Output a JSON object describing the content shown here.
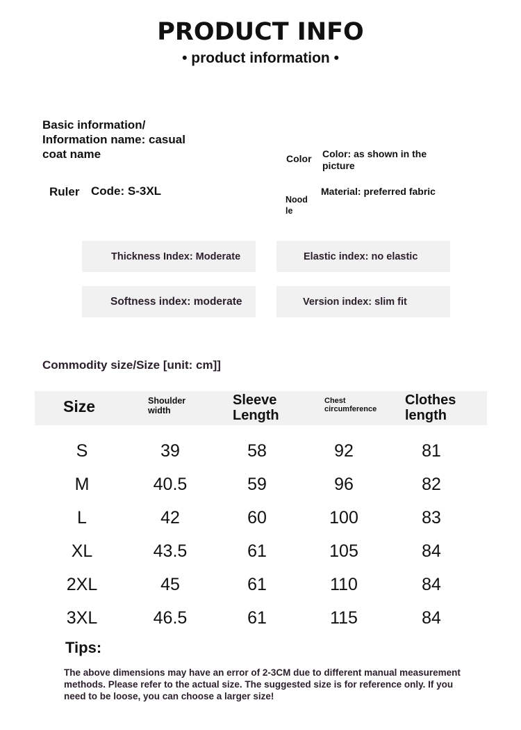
{
  "header": {
    "title": "PRODUCT INFO",
    "subtitle": "• product information •"
  },
  "basic": {
    "info": "Basic information/ Information name: casual coat name",
    "ruler_label": "Ruler",
    "code": "Code: S-3XL",
    "color_label": "Color",
    "color_value": "Color: as shown in the picture",
    "noodle_label": "Nood le",
    "material_value": "Material: preferred fabric"
  },
  "indices": {
    "thickness": "Thickness Index: Moderate",
    "elastic": "Elastic index: no elastic",
    "softness": "Softness index: moderate",
    "version": "Version index: slim fit"
  },
  "size_table": {
    "title": "Commodity size/Size [unit: cm]]",
    "headers": [
      "Size",
      "Shoulder width",
      "Sleeve Length",
      "Chest circumference",
      "Clothes length"
    ],
    "rows": [
      [
        "S",
        "39",
        "58",
        "92",
        "81"
      ],
      [
        "M",
        "40.5",
        "59",
        "96",
        "82"
      ],
      [
        "L",
        "42",
        "60",
        "100",
        "83"
      ],
      [
        "XL",
        "43.5",
        "61",
        "105",
        "84"
      ],
      [
        "2XL",
        "45",
        "61",
        "110",
        "84"
      ],
      [
        "3XL",
        "46.5",
        "61",
        "115",
        "84"
      ]
    ]
  },
  "tips": {
    "label": "Tips:",
    "text": "The above dimensions may have an error of 2-3CM due to different manual measurement methods. Please refer to the actual size. The suggested size is for reference only. If you need to be loose, you can choose a larger size!"
  }
}
